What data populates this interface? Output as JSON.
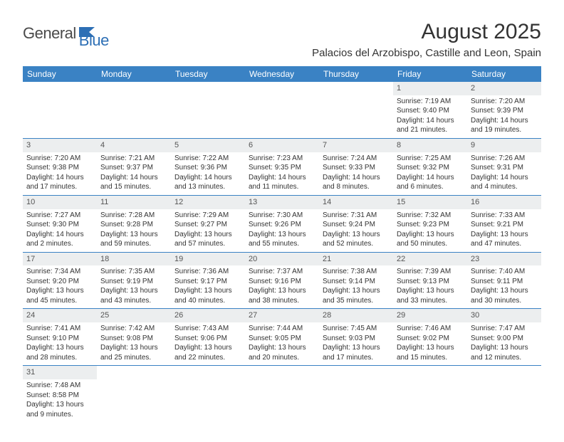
{
  "logo": {
    "part1": "General",
    "part2": "Blue"
  },
  "title": "August 2025",
  "location": "Palacios del Arzobispo, Castille and Leon, Spain",
  "colors": {
    "header_bg": "#3a82c4",
    "header_text": "#ffffff",
    "daynum_bg": "#eceeef",
    "border": "#3a82c4",
    "logo_blue": "#2d6fb5",
    "logo_gray": "#4a4a4a"
  },
  "weekdays": [
    "Sunday",
    "Monday",
    "Tuesday",
    "Wednesday",
    "Thursday",
    "Friday",
    "Saturday"
  ],
  "weeks": [
    [
      null,
      null,
      null,
      null,
      null,
      {
        "n": "1",
        "sr": "Sunrise: 7:19 AM",
        "ss": "Sunset: 9:40 PM",
        "d1": "Daylight: 14 hours",
        "d2": "and 21 minutes."
      },
      {
        "n": "2",
        "sr": "Sunrise: 7:20 AM",
        "ss": "Sunset: 9:39 PM",
        "d1": "Daylight: 14 hours",
        "d2": "and 19 minutes."
      }
    ],
    [
      {
        "n": "3",
        "sr": "Sunrise: 7:20 AM",
        "ss": "Sunset: 9:38 PM",
        "d1": "Daylight: 14 hours",
        "d2": "and 17 minutes."
      },
      {
        "n": "4",
        "sr": "Sunrise: 7:21 AM",
        "ss": "Sunset: 9:37 PM",
        "d1": "Daylight: 14 hours",
        "d2": "and 15 minutes."
      },
      {
        "n": "5",
        "sr": "Sunrise: 7:22 AM",
        "ss": "Sunset: 9:36 PM",
        "d1": "Daylight: 14 hours",
        "d2": "and 13 minutes."
      },
      {
        "n": "6",
        "sr": "Sunrise: 7:23 AM",
        "ss": "Sunset: 9:35 PM",
        "d1": "Daylight: 14 hours",
        "d2": "and 11 minutes."
      },
      {
        "n": "7",
        "sr": "Sunrise: 7:24 AM",
        "ss": "Sunset: 9:33 PM",
        "d1": "Daylight: 14 hours",
        "d2": "and 8 minutes."
      },
      {
        "n": "8",
        "sr": "Sunrise: 7:25 AM",
        "ss": "Sunset: 9:32 PM",
        "d1": "Daylight: 14 hours",
        "d2": "and 6 minutes."
      },
      {
        "n": "9",
        "sr": "Sunrise: 7:26 AM",
        "ss": "Sunset: 9:31 PM",
        "d1": "Daylight: 14 hours",
        "d2": "and 4 minutes."
      }
    ],
    [
      {
        "n": "10",
        "sr": "Sunrise: 7:27 AM",
        "ss": "Sunset: 9:30 PM",
        "d1": "Daylight: 14 hours",
        "d2": "and 2 minutes."
      },
      {
        "n": "11",
        "sr": "Sunrise: 7:28 AM",
        "ss": "Sunset: 9:28 PM",
        "d1": "Daylight: 13 hours",
        "d2": "and 59 minutes."
      },
      {
        "n": "12",
        "sr": "Sunrise: 7:29 AM",
        "ss": "Sunset: 9:27 PM",
        "d1": "Daylight: 13 hours",
        "d2": "and 57 minutes."
      },
      {
        "n": "13",
        "sr": "Sunrise: 7:30 AM",
        "ss": "Sunset: 9:26 PM",
        "d1": "Daylight: 13 hours",
        "d2": "and 55 minutes."
      },
      {
        "n": "14",
        "sr": "Sunrise: 7:31 AM",
        "ss": "Sunset: 9:24 PM",
        "d1": "Daylight: 13 hours",
        "d2": "and 52 minutes."
      },
      {
        "n": "15",
        "sr": "Sunrise: 7:32 AM",
        "ss": "Sunset: 9:23 PM",
        "d1": "Daylight: 13 hours",
        "d2": "and 50 minutes."
      },
      {
        "n": "16",
        "sr": "Sunrise: 7:33 AM",
        "ss": "Sunset: 9:21 PM",
        "d1": "Daylight: 13 hours",
        "d2": "and 47 minutes."
      }
    ],
    [
      {
        "n": "17",
        "sr": "Sunrise: 7:34 AM",
        "ss": "Sunset: 9:20 PM",
        "d1": "Daylight: 13 hours",
        "d2": "and 45 minutes."
      },
      {
        "n": "18",
        "sr": "Sunrise: 7:35 AM",
        "ss": "Sunset: 9:19 PM",
        "d1": "Daylight: 13 hours",
        "d2": "and 43 minutes."
      },
      {
        "n": "19",
        "sr": "Sunrise: 7:36 AM",
        "ss": "Sunset: 9:17 PM",
        "d1": "Daylight: 13 hours",
        "d2": "and 40 minutes."
      },
      {
        "n": "20",
        "sr": "Sunrise: 7:37 AM",
        "ss": "Sunset: 9:16 PM",
        "d1": "Daylight: 13 hours",
        "d2": "and 38 minutes."
      },
      {
        "n": "21",
        "sr": "Sunrise: 7:38 AM",
        "ss": "Sunset: 9:14 PM",
        "d1": "Daylight: 13 hours",
        "d2": "and 35 minutes."
      },
      {
        "n": "22",
        "sr": "Sunrise: 7:39 AM",
        "ss": "Sunset: 9:13 PM",
        "d1": "Daylight: 13 hours",
        "d2": "and 33 minutes."
      },
      {
        "n": "23",
        "sr": "Sunrise: 7:40 AM",
        "ss": "Sunset: 9:11 PM",
        "d1": "Daylight: 13 hours",
        "d2": "and 30 minutes."
      }
    ],
    [
      {
        "n": "24",
        "sr": "Sunrise: 7:41 AM",
        "ss": "Sunset: 9:10 PM",
        "d1": "Daylight: 13 hours",
        "d2": "and 28 minutes."
      },
      {
        "n": "25",
        "sr": "Sunrise: 7:42 AM",
        "ss": "Sunset: 9:08 PM",
        "d1": "Daylight: 13 hours",
        "d2": "and 25 minutes."
      },
      {
        "n": "26",
        "sr": "Sunrise: 7:43 AM",
        "ss": "Sunset: 9:06 PM",
        "d1": "Daylight: 13 hours",
        "d2": "and 22 minutes."
      },
      {
        "n": "27",
        "sr": "Sunrise: 7:44 AM",
        "ss": "Sunset: 9:05 PM",
        "d1": "Daylight: 13 hours",
        "d2": "and 20 minutes."
      },
      {
        "n": "28",
        "sr": "Sunrise: 7:45 AM",
        "ss": "Sunset: 9:03 PM",
        "d1": "Daylight: 13 hours",
        "d2": "and 17 minutes."
      },
      {
        "n": "29",
        "sr": "Sunrise: 7:46 AM",
        "ss": "Sunset: 9:02 PM",
        "d1": "Daylight: 13 hours",
        "d2": "and 15 minutes."
      },
      {
        "n": "30",
        "sr": "Sunrise: 7:47 AM",
        "ss": "Sunset: 9:00 PM",
        "d1": "Daylight: 13 hours",
        "d2": "and 12 minutes."
      }
    ],
    [
      {
        "n": "31",
        "sr": "Sunrise: 7:48 AM",
        "ss": "Sunset: 8:58 PM",
        "d1": "Daylight: 13 hours",
        "d2": "and 9 minutes."
      },
      null,
      null,
      null,
      null,
      null,
      null
    ]
  ]
}
